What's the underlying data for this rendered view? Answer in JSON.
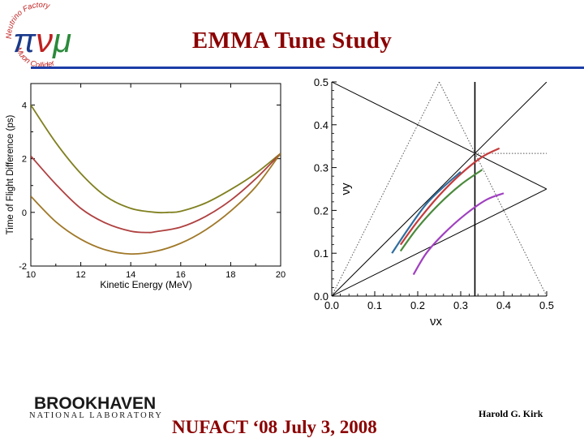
{
  "slide": {
    "title": "EMMA Tune Study",
    "footer_event": "NUFACT ‘08 July 3, 2008",
    "footer_author": "Harold G. Kirk",
    "colors": {
      "title": "#8b0000",
      "rule": "#1b3da8"
    }
  },
  "logo": {
    "ring_text": "Neutrino Factory Muon Collider",
    "glyphs": "πνμ",
    "icon": "neutrino-factory-logo-icon"
  },
  "institution": {
    "name": "BROOKHAVEN",
    "subtitle": "NATIONAL LABORATORY"
  },
  "chart_data": [
    {
      "type": "line",
      "title": "",
      "xlabel": "Kinetic Energy (MeV)",
      "ylabel": "Time of Flight Difference (ps)",
      "xlim": [
        10,
        20
      ],
      "ylim": [
        -2,
        4.8
      ],
      "xticks": [
        "10",
        "12",
        "14",
        "16",
        "18",
        "20"
      ],
      "yticks": [
        "-2",
        "0",
        "2",
        "4"
      ],
      "series": [
        {
          "name": "upper",
          "color": "#808020",
          "x": [
            10,
            11,
            12,
            13,
            14,
            15,
            15.5,
            16,
            17,
            18,
            19,
            20
          ],
          "y": [
            4.0,
            2.6,
            1.45,
            0.6,
            0.15,
            0.0,
            0.0,
            0.04,
            0.35,
            0.85,
            1.45,
            2.2
          ]
        },
        {
          "name": "middle",
          "color": "#b04040",
          "x": [
            10,
            11,
            12,
            13,
            14,
            14.7,
            15,
            16,
            17,
            18,
            19,
            20
          ],
          "y": [
            2.1,
            1.05,
            0.15,
            -0.4,
            -0.7,
            -0.75,
            -0.72,
            -0.55,
            -0.15,
            0.45,
            1.25,
            2.2
          ]
        },
        {
          "name": "lower",
          "color": "#a07828",
          "x": [
            10,
            11,
            12,
            13,
            14,
            15,
            16,
            17,
            18,
            19,
            20
          ],
          "y": [
            0.6,
            -0.35,
            -1.0,
            -1.4,
            -1.55,
            -1.45,
            -1.15,
            -0.65,
            0.05,
            0.95,
            2.2
          ]
        }
      ]
    },
    {
      "type": "line",
      "title": "",
      "xlabel": "νx",
      "ylabel": "νy",
      "xlim": [
        0,
        0.5
      ],
      "ylim": [
        0,
        0.5
      ],
      "xticks": [
        "0.0",
        "0.1",
        "0.2",
        "0.3",
        "0.4",
        "0.5"
      ],
      "yticks": [
        "0.0",
        "0.1",
        "0.2",
        "0.3",
        "0.4",
        "0.5"
      ],
      "resonance_lines": [
        {
          "name": "nux=nuy",
          "style": "solid",
          "x": [
            0,
            0.5
          ],
          "y": [
            0,
            0.5
          ]
        },
        {
          "name": "nux+nuy=0.5",
          "style": "solid",
          "x": [
            0,
            0.5
          ],
          "y": [
            0.5,
            0.25
          ]
        },
        {
          "name": "2nuy-nux=0",
          "style": "solid",
          "x": [
            0,
            0.5
          ],
          "y": [
            0,
            0.25
          ]
        },
        {
          "name": "nux=1/3",
          "style": "solid",
          "x": [
            0.333,
            0.333
          ],
          "y": [
            0,
            0.5
          ]
        },
        {
          "name": "nuy=1/3",
          "style": "dotted",
          "x": [
            0.333,
            0.5
          ],
          "y": [
            0.333,
            0.333
          ]
        },
        {
          "name": "3nux-left",
          "style": "dotted",
          "x": [
            0,
            0.25
          ],
          "y": [
            0,
            0.5
          ]
        },
        {
          "name": "3nux-right",
          "style": "dotted",
          "x": [
            0.25,
            0.5
          ],
          "y": [
            0.5,
            0
          ]
        }
      ],
      "series": [
        {
          "name": "red",
          "color": "#c43c3c",
          "x": [
            0.16,
            0.2,
            0.25,
            0.3,
            0.35,
            0.39
          ],
          "y": [
            0.12,
            0.175,
            0.235,
            0.285,
            0.325,
            0.345
          ]
        },
        {
          "name": "blue",
          "color": "#2f6ea0",
          "x": [
            0.14,
            0.18,
            0.22,
            0.26,
            0.3
          ],
          "y": [
            0.1,
            0.16,
            0.215,
            0.255,
            0.29
          ]
        },
        {
          "name": "green",
          "color": "#4a8a3c",
          "x": [
            0.16,
            0.2,
            0.25,
            0.3,
            0.35
          ],
          "y": [
            0.105,
            0.16,
            0.215,
            0.26,
            0.295
          ]
        },
        {
          "name": "purple",
          "color": "#a040c0",
          "x": [
            0.19,
            0.22,
            0.26,
            0.31,
            0.36,
            0.4
          ],
          "y": [
            0.05,
            0.1,
            0.145,
            0.19,
            0.225,
            0.24
          ]
        }
      ]
    }
  ]
}
